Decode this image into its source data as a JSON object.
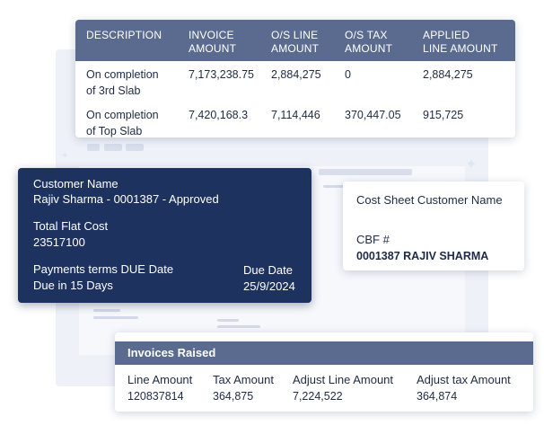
{
  "invoice_table": {
    "headers": [
      [
        "DESCRIPTION"
      ],
      [
        "INVOICE",
        "AMOUNT"
      ],
      [
        "O/S LINE",
        "AMOUNT"
      ],
      [
        "O/S TAX",
        "AMOUNT"
      ],
      [
        "APPLIED",
        "LINE AMOUNT"
      ]
    ],
    "rows": [
      {
        "description": [
          "On completion",
          "of 3rd Slab"
        ],
        "invoice_amount": "7,173,238.75",
        "os_line_amount": "2,884,275",
        "os_tax_amount": "0",
        "applied_line_amount": "2,884,275"
      },
      {
        "description": [
          "On completion",
          "of Top Slab"
        ],
        "invoice_amount": "7,420,168.3",
        "os_line_amount": "7,114,446",
        "os_tax_amount": "370,447.05",
        "applied_line_amount": "915,725"
      }
    ]
  },
  "customer": {
    "name_label": "Customer Name",
    "name_value": "Rajiv Sharma - 0001387 - Approved",
    "flat_cost_label": "Total Flat Cost",
    "flat_cost_value": "23517100",
    "payment_terms_label": "Payments terms DUE Date",
    "payment_terms_value": "Due in 15 Days",
    "due_date_label": "Due Date",
    "due_date_value": "25/9/2024"
  },
  "cost_sheet": {
    "title": "Cost Sheet Customer Name",
    "cbf_label": "CBF #",
    "cbf_value": "0001387 RAJIV SHARMA"
  },
  "invoices_raised": {
    "title": "Invoices Raised",
    "columns": [
      {
        "label": "Line Amount",
        "value": "120837814"
      },
      {
        "label": "Tax Amount",
        "value": "364,875"
      },
      {
        "label": "Adjust Line Amount",
        "value": "7,224,522"
      },
      {
        "label": "Adjust tax Amount",
        "value": "364,874"
      }
    ]
  },
  "colors": {
    "header_slate": "#5b6b8f",
    "dark_navy": "#1e3260",
    "text_dark": "#1f2a44",
    "background_tint": "#eef1f8"
  }
}
